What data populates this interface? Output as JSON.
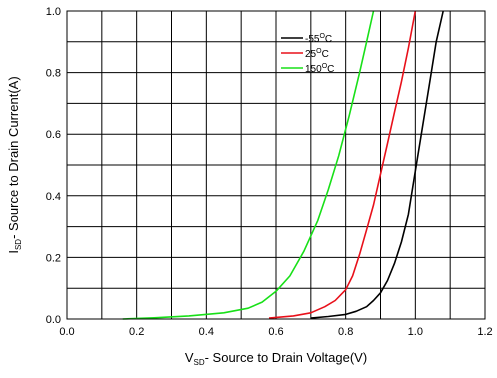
{
  "chart_data": {
    "type": "line",
    "xlabel": {
      "main": "V",
      "sub": "SD",
      "rest": "- Source to Drain Voltage(V)"
    },
    "ylabel": {
      "main": "I",
      "sub": "SD",
      "rest": "- Source to Drain Current(A)"
    },
    "xlim": [
      0.0,
      1.2
    ],
    "ylim": [
      0.0,
      1.0
    ],
    "x_ticks": [
      "0.0",
      "0.2",
      "0.4",
      "0.6",
      "0.8",
      "1.0",
      "1.2"
    ],
    "y_ticks": [
      "0.0",
      "0.2",
      "0.4",
      "0.6",
      "0.8",
      "1.0"
    ],
    "x_tick_values": [
      0.0,
      0.2,
      0.4,
      0.6,
      0.8,
      1.0,
      1.2
    ],
    "y_tick_values": [
      0.0,
      0.2,
      0.4,
      0.6,
      0.8,
      1.0
    ],
    "x_grid_step": 0.1,
    "y_grid_step": 0.1,
    "grid": true,
    "legend_position": "top-right",
    "series": [
      {
        "name": "-55°C",
        "label_main": "-55",
        "label_sup": "O",
        "label_unit": "C",
        "color": "#000000",
        "x": [
          0.7,
          0.75,
          0.8,
          0.83,
          0.86,
          0.88,
          0.9,
          0.92,
          0.94,
          0.96,
          0.98,
          1.0,
          1.02,
          1.04,
          1.06,
          1.08
        ],
        "y": [
          0.003,
          0.008,
          0.015,
          0.025,
          0.04,
          0.06,
          0.085,
          0.125,
          0.18,
          0.25,
          0.34,
          0.48,
          0.62,
          0.76,
          0.9,
          1.0
        ]
      },
      {
        "name": "25°C",
        "label_main": "25",
        "label_sup": "O",
        "label_unit": "C",
        "color": "#e8101a",
        "x": [
          0.58,
          0.65,
          0.7,
          0.74,
          0.77,
          0.8,
          0.82,
          0.84,
          0.86,
          0.88,
          0.9,
          0.92,
          0.94,
          0.96,
          0.98,
          1.0
        ],
        "y": [
          0.003,
          0.01,
          0.02,
          0.04,
          0.06,
          0.095,
          0.14,
          0.21,
          0.29,
          0.37,
          0.47,
          0.57,
          0.67,
          0.77,
          0.88,
          1.0
        ]
      },
      {
        "name": "150°C",
        "label_main": "150",
        "label_sup": "O",
        "label_unit": "C",
        "color": "#18e018",
        "x": [
          0.16,
          0.25,
          0.35,
          0.45,
          0.52,
          0.56,
          0.6,
          0.64,
          0.68,
          0.72,
          0.75,
          0.78,
          0.81,
          0.84,
          0.86,
          0.88
        ],
        "y": [
          0.0,
          0.004,
          0.01,
          0.02,
          0.035,
          0.055,
          0.09,
          0.14,
          0.22,
          0.32,
          0.42,
          0.53,
          0.66,
          0.8,
          0.9,
          1.0
        ]
      }
    ]
  }
}
